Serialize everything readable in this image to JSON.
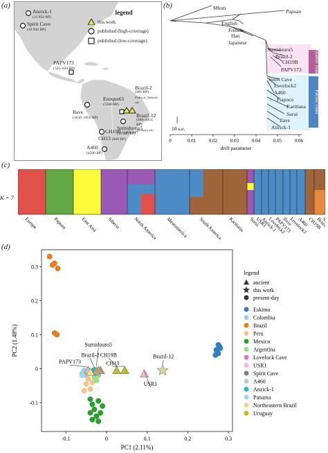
{
  "figure": {
    "panels": {
      "a": "(a)",
      "b": "(b)",
      "c": "(c)",
      "d": "(d)"
    }
  },
  "map": {
    "legend": {
      "title": "legend",
      "items": [
        "this work",
        "published (high-coverage)",
        "published (low-coverage)"
      ]
    },
    "sites": [
      {
        "id": "anzick",
        "name": "Anzick-1",
        "date": "(12 850 BP)",
        "marker": "circle"
      },
      {
        "id": "spirit",
        "name": "Spirit Cave",
        "date": "(10 950 BP)",
        "marker": "circle"
      },
      {
        "id": "papv",
        "name": "PAPV173",
        "date": "(525–650 BP)",
        "marker": "square"
      },
      {
        "id": "ilave",
        "name": "Ilave",
        "date": "(1630–1850 BP)",
        "marker": "circle"
      },
      {
        "id": "enoque",
        "name": "Enoque65",
        "date": "(3500 BP)",
        "marker": "square"
      },
      {
        "id": "brazil2",
        "name": "Brazil-2",
        "date": "(981 BP)",
        "note": "Pedra do Tubarão site",
        "marker": "triangle"
      },
      {
        "id": "brazil12",
        "name": "Brazil-12",
        "date": "(668–4851 BP)",
        "note": "Alcobaça site",
        "marker": "triangle"
      },
      {
        "id": "sumidouro",
        "name": "Sumidouro5",
        "date": "(10 400 BP)",
        "marker": "circle"
      },
      {
        "id": "ch19b",
        "name": "CH19B",
        "date": "(1450 BP)",
        "marker": "circle"
      },
      {
        "id": "ch13",
        "name": "CH13",
        "date": "(668 BP)",
        "marker": "circle"
      },
      {
        "id": "a460",
        "name": "A460",
        "date": "(4500 BP)",
        "marker": "circle"
      }
    ]
  },
  "tree": {
    "tips": [
      "Mbuti",
      "Papuan",
      "English",
      "French",
      "Han",
      "Japanese",
      "Sumidouro5",
      "Brazil-2",
      "CH19B",
      "PAPV173",
      "Spirit Cave",
      "Lovelock2",
      "A460",
      "Piapoco",
      "Karitiana",
      "Surui",
      "Ilave",
      "Anzick-1"
    ],
    "clades": [
      {
        "label": "Atlantic coast",
        "color": "#b3609a",
        "bg": "#f9e2f2"
      },
      {
        "label": "Pacific coast",
        "color": "#4d86c0",
        "bg": "#dff3fb"
      }
    ],
    "scale_bar": "10 s.e.",
    "axis": {
      "label": "drift parameter",
      "ticks": [
        "0",
        "0.01",
        "0.02",
        "0.03",
        "0.04",
        "0.05",
        "0.06"
      ]
    }
  },
  "admixture": {
    "k_label": "K = 7",
    "groups": [
      "Europe",
      "Papuan",
      "East Asia",
      "Siberia",
      "North America",
      "Mesoamerica",
      "South America",
      "Karitiana",
      "Surui",
      "USR1",
      "Anzick-1",
      "Lovelock2",
      "PAPV173",
      "Ilave",
      "Lovelock3",
      "A460",
      "CH19B",
      "Brazil",
      "Sumidouro5"
    ]
  },
  "chart_data": {
    "type": "scatter",
    "xlabel": "PC1 (2.11%)",
    "ylabel": "PC2 (1.48%)",
    "xlim": [
      -0.16,
      0.31
    ],
    "ylim": [
      -0.185,
      0.35
    ],
    "xticks": [
      -0.1,
      0,
      0.1,
      0.2,
      0.3
    ],
    "yticks": [
      -0.1,
      0,
      0.1,
      0.2,
      0.3
    ],
    "xtick_labels": [
      "-0.1",
      "0",
      "0.1",
      "0.2",
      "0.3"
    ],
    "ytick_labels": [
      "-0.1",
      "0",
      "0.1",
      "0.2",
      "0.3"
    ],
    "legend": {
      "title": "legend",
      "shapes": [
        {
          "shape": "triangle",
          "label": "ancient"
        },
        {
          "shape": "star",
          "label": "this work"
        },
        {
          "shape": "circle",
          "label": "present-day"
        }
      ],
      "placement": "right"
    },
    "series": [
      {
        "name": "Eskimo",
        "color": "#2f7fc1",
        "shape": "circle",
        "points": [
          [
            0.275,
            0.07
          ],
          [
            0.28,
            0.06
          ],
          [
            0.27,
            0.055
          ],
          [
            0.275,
            0.045
          ],
          [
            0.268,
            0.04
          ],
          [
            0.278,
            0.065
          ]
        ]
      },
      {
        "name": "Colombia",
        "color": "#a6c8e6",
        "shape": "circle",
        "points": [
          [
            -0.055,
            -0.005
          ],
          [
            -0.06,
            -0.015
          ],
          [
            -0.05,
            -0.02
          ]
        ]
      },
      {
        "name": "Brazil",
        "color": "#e67e22",
        "shape": "circle",
        "points": [
          [
            -0.14,
            0.33
          ],
          [
            -0.133,
            0.305
          ],
          [
            -0.128,
            0.31
          ],
          [
            -0.12,
            0.295
          ],
          [
            -0.128,
            0.105
          ],
          [
            -0.122,
            0.1
          ]
        ]
      },
      {
        "name": "Peru",
        "color": "#f5c28a",
        "shape": "circle",
        "points": [
          [
            -0.05,
            -0.045
          ],
          [
            -0.04,
            -0.06
          ],
          [
            -0.045,
            -0.03
          ],
          [
            -0.035,
            -0.04
          ],
          [
            -0.055,
            -0.065
          ]
        ]
      },
      {
        "name": "Mexico",
        "color": "#2ca02c",
        "shape": "circle",
        "points": [
          [
            -0.04,
            -0.09
          ],
          [
            -0.035,
            -0.105
          ],
          [
            -0.03,
            -0.12
          ],
          [
            -0.025,
            -0.14
          ],
          [
            -0.02,
            -0.155
          ],
          [
            -0.01,
            -0.11
          ],
          [
            -0.02,
            -0.095
          ],
          [
            -0.04,
            -0.13
          ],
          [
            -0.035,
            -0.15
          ],
          [
            -0.015,
            -0.13
          ]
        ]
      },
      {
        "name": "Argentina",
        "color": "#98df8a",
        "shape": "circle",
        "points": [
          [
            -0.03,
            -0.025
          ],
          [
            -0.025,
            -0.035
          ],
          [
            -0.02,
            -0.02
          ]
        ]
      },
      {
        "name": "Lovelock Cave",
        "color": "#e377c2",
        "shape": "triangle",
        "points": [
          [
            -0.015,
            -0.005
          ]
        ]
      },
      {
        "name": "USR1",
        "color": "#f7b6d2",
        "shape": "triangle",
        "points": [
          [
            0.093,
            -0.015
          ]
        ]
      },
      {
        "name": "Spirit Cave",
        "color": "#7f7f7f",
        "shape": "triangle",
        "points": [
          [
            -0.035,
            -0.01
          ]
        ]
      },
      {
        "name": "A460",
        "color": "#c7c7c7",
        "shape": "triangle",
        "points": [
          [
            -0.045,
            -0.005
          ]
        ]
      },
      {
        "name": "Anzick-1",
        "color": "#17becf",
        "shape": "triangle",
        "points": [
          [
            -0.03,
            -0.005
          ]
        ]
      },
      {
        "name": "Panama",
        "color": "#9edae5",
        "shape": "circle",
        "points": [
          [
            -0.06,
            -0.02
          ]
        ]
      },
      {
        "name": "Northeastern Brazil",
        "color": "#dbdb8d",
        "shape": "star",
        "points": [
          [
            0.138,
            -0.005
          ]
        ]
      },
      {
        "name": "Uruguay",
        "color": "#bcbd22",
        "shape": "triangle",
        "points": [
          [
            0.025,
            -0.005
          ],
          [
            0.045,
            -0.005
          ],
          [
            -0.02,
            -0.005
          ]
        ]
      },
      {
        "name": "Brazil-2",
        "color": "#c49c94",
        "shape": "triangle",
        "points": [
          [
            -0.025,
            -0.008
          ]
        ]
      },
      {
        "name": "PAPV173",
        "color": "#f0e68c",
        "shape": "triangle",
        "points": [
          [
            -0.04,
            -0.01
          ]
        ]
      }
    ],
    "annotations": [
      {
        "label": "Sumidouro5",
        "x": -0.02,
        "y": 0.065,
        "tx": -0.025,
        "ty": -0.005
      },
      {
        "label": "Brazil-2",
        "x": -0.04,
        "y": 0.035,
        "tx": -0.032,
        "ty": -0.005
      },
      {
        "label": "CH19B",
        "x": 0.005,
        "y": 0.035,
        "tx": 0.025,
        "ty": -0.005
      },
      {
        "label": "PAPV173",
        "x": -0.09,
        "y": 0.015,
        "tx": -0.045,
        "ty": -0.008
      },
      {
        "label": "CH13",
        "x": 0.015,
        "y": 0.01,
        "tx": 0.045,
        "ty": -0.005
      },
      {
        "label": "Brazil-12",
        "x": 0.14,
        "y": 0.03,
        "tx": 0.138,
        "ty": 0.0
      },
      {
        "label": "USR1",
        "x": 0.108,
        "y": -0.05,
        "tx": 0.093,
        "ty": -0.02
      }
    ]
  }
}
